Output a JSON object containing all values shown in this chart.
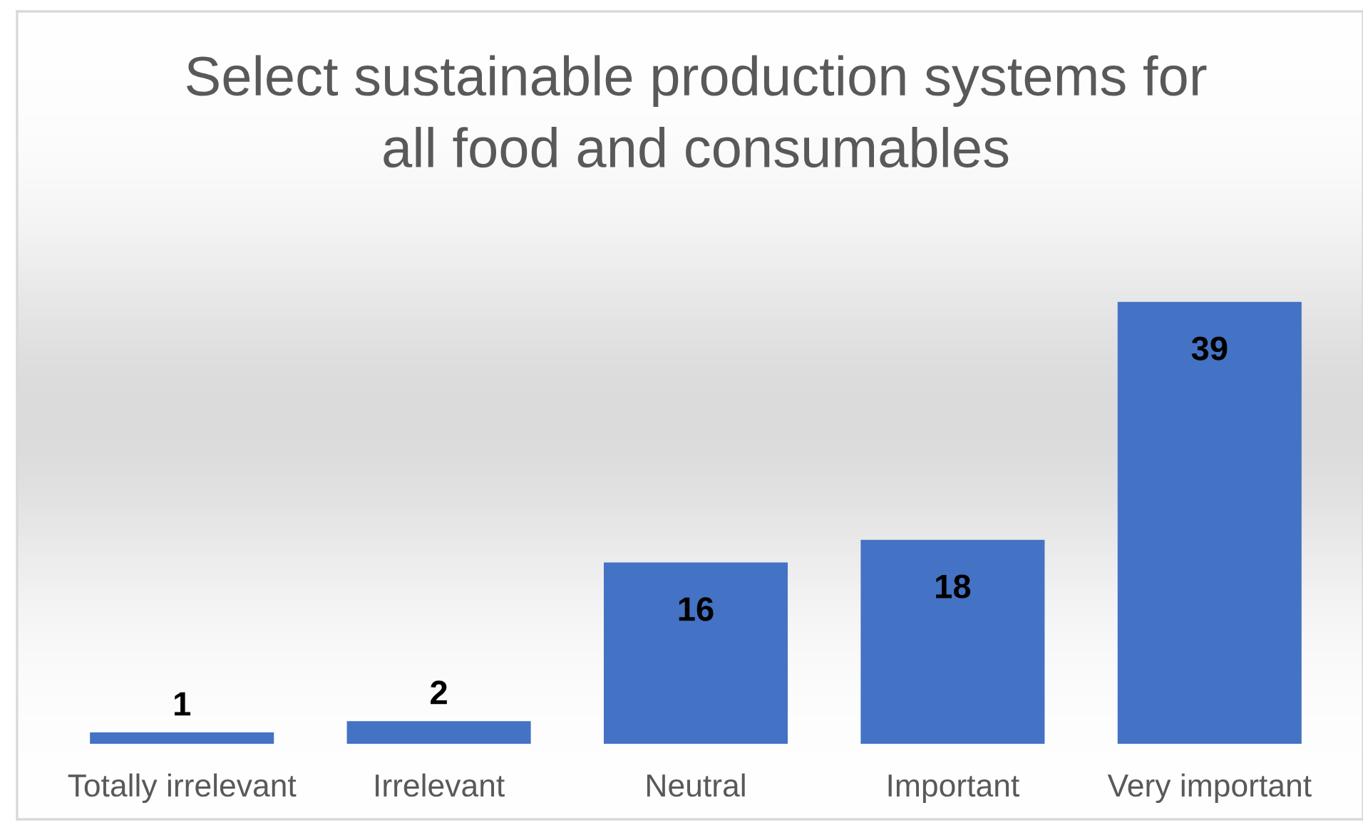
{
  "chart_data": {
    "type": "bar",
    "title": "Select sustainable production systems for\nall food and consumables",
    "categories": [
      "Totally irrelevant",
      "Irrelevant",
      "Neutral",
      "Important",
      "Very important"
    ],
    "values": [
      1,
      2,
      16,
      18,
      39
    ],
    "color": "#4472c4",
    "data_labels": true
  }
}
